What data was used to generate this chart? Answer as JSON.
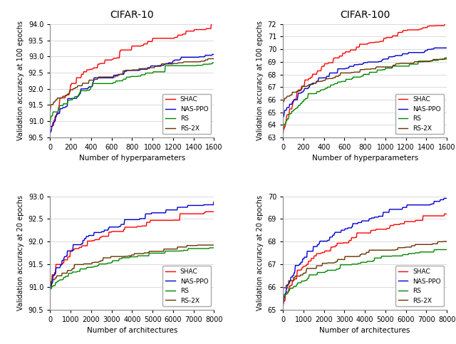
{
  "title_left": "CIFAR-10",
  "title_right": "CIFAR-100",
  "colors": {
    "SHAC": "#ff0000",
    "NAS-PPO": "#0000cc",
    "RS": "#008800",
    "RS-2X": "#663300"
  },
  "linewidth": 1.0,
  "top_left": {
    "ylabel": "Validation accuracy at 100 epochs",
    "xlabel": "Number of hyperparameters",
    "xlim": [
      0,
      1600
    ],
    "ylim": [
      90.5,
      94.0
    ],
    "yticks": [
      90.5,
      91.0,
      91.5,
      92.0,
      92.5,
      93.0,
      93.5,
      94.0
    ],
    "xticks": [
      0,
      200,
      400,
      600,
      800,
      1000,
      1200,
      1400,
      1600
    ]
  },
  "top_right": {
    "ylabel": "Validation accuracy at 100 epochs",
    "xlabel": "Number of hyperparameters",
    "xlim": [
      0,
      1600
    ],
    "ylim": [
      63,
      72
    ],
    "yticks": [
      63,
      64,
      65,
      66,
      67,
      68,
      69,
      70,
      71,
      72
    ],
    "xticks": [
      0,
      200,
      400,
      600,
      800,
      1000,
      1200,
      1400,
      1600
    ]
  },
  "bottom_left": {
    "ylabel": "Validation accuracy at 20 epochs",
    "xlabel": "Number of architectures",
    "xlim": [
      0,
      8000
    ],
    "ylim": [
      90.5,
      93.0
    ],
    "yticks": [
      90.5,
      91.0,
      91.5,
      92.0,
      92.5,
      93.0
    ],
    "xticks": [
      0,
      1000,
      2000,
      3000,
      4000,
      5000,
      6000,
      7000,
      8000
    ]
  },
  "bottom_right": {
    "ylabel": "Validation accuracy at 20 epochs",
    "xlabel": "Number of architectures",
    "xlim": [
      0,
      8000
    ],
    "ylim": [
      65,
      70
    ],
    "yticks": [
      65,
      66,
      67,
      68,
      69,
      70
    ],
    "xticks": [
      0,
      1000,
      2000,
      3000,
      4000,
      5000,
      6000,
      7000,
      8000
    ]
  }
}
